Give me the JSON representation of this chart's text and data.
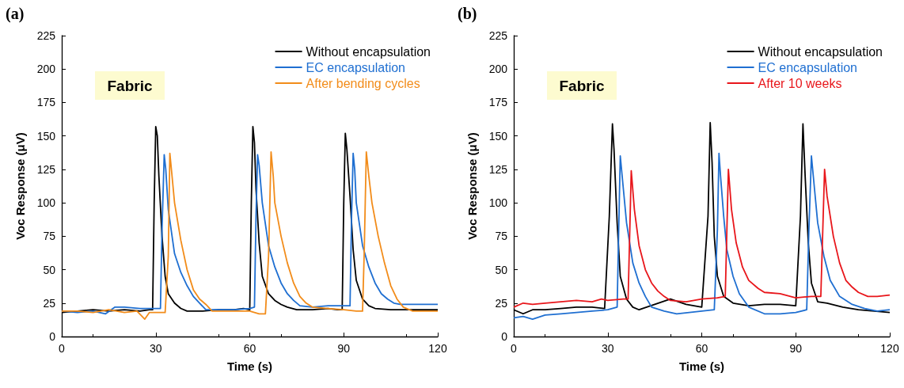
{
  "chart_data": [
    {
      "type": "line",
      "title": "(a)",
      "xlabel": "Time (s)",
      "ylabel": "Voc Response (μV)",
      "annotations": [
        "Fabric"
      ],
      "xlim": [
        0,
        120
      ],
      "xticks": [
        0,
        30,
        60,
        90,
        120
      ],
      "ylim": [
        0,
        225
      ],
      "yticks": [
        0,
        25,
        50,
        75,
        100,
        125,
        150,
        175,
        200,
        225
      ],
      "grid": false,
      "legend": "top right",
      "series": [
        {
          "name": "Without encapsulation",
          "color": "#000000",
          "x": [
            0,
            5,
            10,
            15,
            20,
            25,
            28,
            29,
            29.5,
            30,
            30.5,
            31,
            32,
            33,
            34,
            36,
            38,
            40,
            45,
            50,
            55,
            58,
            60,
            60.5,
            61,
            61.5,
            62,
            63,
            64,
            66,
            68,
            70,
            72,
            75,
            80,
            85,
            88,
            89.5,
            90,
            90.5,
            91,
            92,
            93,
            94,
            96,
            98,
            100,
            105,
            110,
            115,
            120
          ],
          "values": [
            18,
            19,
            20,
            19,
            20,
            19,
            20,
            20,
            100,
            157,
            150,
            120,
            75,
            45,
            32,
            25,
            21,
            19,
            19,
            20,
            20,
            21,
            20,
            100,
            157,
            145,
            110,
            70,
            45,
            32,
            27,
            24,
            22,
            20,
            20,
            21,
            20,
            20,
            100,
            152,
            140,
            105,
            65,
            42,
            28,
            23,
            21,
            20,
            20,
            20,
            20
          ]
        },
        {
          "name": "EC encapsulation",
          "color": "#1f6fd1",
          "x": [
            0,
            5,
            10,
            14,
            17,
            20,
            25,
            30,
            31.5,
            32,
            32.7,
            33.2,
            34,
            36,
            38,
            40,
            42,
            44,
            46,
            50,
            55,
            60,
            61.5,
            62,
            62.5,
            63,
            64,
            66,
            68,
            70,
            72,
            74,
            76,
            80,
            85,
            90,
            92,
            92.5,
            93,
            93.5,
            94,
            96,
            98,
            100,
            102,
            104,
            106,
            108,
            112,
            116,
            120
          ],
          "values": [
            19,
            18,
            19,
            17,
            22,
            22,
            21,
            21,
            21,
            80,
            136,
            125,
            95,
            62,
            48,
            38,
            30,
            25,
            20,
            20,
            20,
            21,
            22,
            90,
            136,
            128,
            100,
            68,
            52,
            40,
            32,
            27,
            23,
            22,
            23,
            23,
            23,
            90,
            137,
            125,
            100,
            68,
            52,
            40,
            32,
            28,
            25,
            24,
            24,
            24,
            24
          ]
        },
        {
          "name": "After bending cycles",
          "color": "#f28c1a",
          "x": [
            0,
            5,
            10,
            15,
            20,
            24,
            26.5,
            28,
            30,
            33,
            34,
            34.5,
            35,
            36,
            38,
            40,
            42,
            44,
            46,
            48,
            52,
            56,
            60,
            63,
            65,
            66,
            66.8,
            67.5,
            68,
            70,
            72,
            74,
            76,
            78,
            80,
            85,
            90,
            94,
            96,
            96.5,
            97.2,
            98,
            99,
            101,
            103,
            105,
            107,
            109,
            112,
            116,
            120
          ],
          "values": [
            19,
            19,
            18,
            20,
            18,
            19,
            13,
            18,
            18,
            18,
            60,
            137,
            125,
            100,
            72,
            50,
            35,
            28,
            24,
            19,
            19,
            19,
            19,
            17,
            17,
            60,
            138,
            120,
            100,
            75,
            55,
            40,
            30,
            25,
            22,
            21,
            20,
            19,
            19,
            60,
            138,
            120,
            100,
            75,
            55,
            38,
            28,
            22,
            19,
            19,
            19
          ]
        }
      ]
    },
    {
      "type": "line",
      "title": "(b)",
      "xlabel": "Time (s)",
      "ylabel": "Voc Response (μV)",
      "annotations": [
        "Fabric"
      ],
      "xlim": [
        0,
        120
      ],
      "xticks": [
        0,
        30,
        60,
        90,
        120
      ],
      "ylim": [
        0,
        225
      ],
      "yticks": [
        0,
        25,
        50,
        75,
        100,
        125,
        150,
        175,
        200,
        225
      ],
      "grid": false,
      "legend": "top right",
      "series": [
        {
          "name": "Without encapsulation",
          "color": "#000000",
          "x": [
            0,
            3,
            6,
            10,
            15,
            20,
            25,
            29,
            30.5,
            31.5,
            32,
            33,
            34,
            36,
            38,
            40,
            45,
            50,
            55,
            60,
            62,
            62.7,
            63.3,
            64,
            65,
            67,
            70,
            75,
            80,
            85,
            90,
            91.5,
            92.3,
            93,
            94,
            95,
            97,
            100,
            105,
            110,
            115,
            120
          ],
          "values": [
            20,
            17,
            20,
            20,
            21,
            22,
            22,
            21,
            90,
            159,
            140,
            85,
            45,
            28,
            22,
            20,
            24,
            28,
            24,
            22,
            90,
            160,
            130,
            75,
            45,
            30,
            25,
            23,
            24,
            24,
            23,
            90,
            159,
            120,
            70,
            40,
            26,
            25,
            22,
            20,
            19,
            18
          ]
        },
        {
          "name": "EC encapsulation",
          "color": "#1f6fd1",
          "x": [
            0,
            3,
            6,
            10,
            15,
            20,
            25,
            30,
            33,
            33.5,
            34,
            35,
            36,
            38,
            40,
            42,
            44,
            48,
            52,
            56,
            60,
            64,
            65,
            65.5,
            66,
            67,
            68,
            70,
            72,
            75,
            80,
            85,
            90,
            93.5,
            94.2,
            95,
            96,
            97,
            99,
            101,
            104,
            108,
            112,
            116,
            120
          ],
          "values": [
            14,
            15,
            13,
            16,
            17,
            18,
            19,
            20,
            22,
            80,
            135,
            110,
            85,
            55,
            40,
            30,
            22,
            19,
            17,
            18,
            19,
            20,
            80,
            137,
            120,
            90,
            65,
            45,
            32,
            22,
            17,
            17,
            18,
            20,
            80,
            135,
            110,
            85,
            60,
            42,
            30,
            24,
            21,
            19,
            20
          ]
        },
        {
          "name": "After 10 weeks",
          "color": "#e8161b",
          "x": [
            0,
            3,
            6,
            10,
            15,
            20,
            25,
            28,
            30,
            35,
            36.5,
            37.5,
            38.5,
            40,
            42,
            44,
            46,
            48,
            50,
            55,
            60,
            65,
            67.5,
            68.5,
            69.5,
            71,
            73,
            75,
            78,
            80,
            85,
            90,
            95,
            98,
            99.2,
            100,
            102,
            104,
            106,
            108,
            110,
            113,
            116,
            120
          ],
          "values": [
            22,
            25,
            24,
            25,
            26,
            27,
            26,
            28,
            27,
            28,
            28,
            124,
            95,
            68,
            50,
            40,
            34,
            30,
            27,
            26,
            28,
            29,
            30,
            125,
            95,
            70,
            52,
            42,
            36,
            33,
            32,
            29,
            30,
            30,
            125,
            105,
            75,
            55,
            42,
            37,
            33,
            30,
            30,
            31
          ]
        }
      ]
    }
  ]
}
